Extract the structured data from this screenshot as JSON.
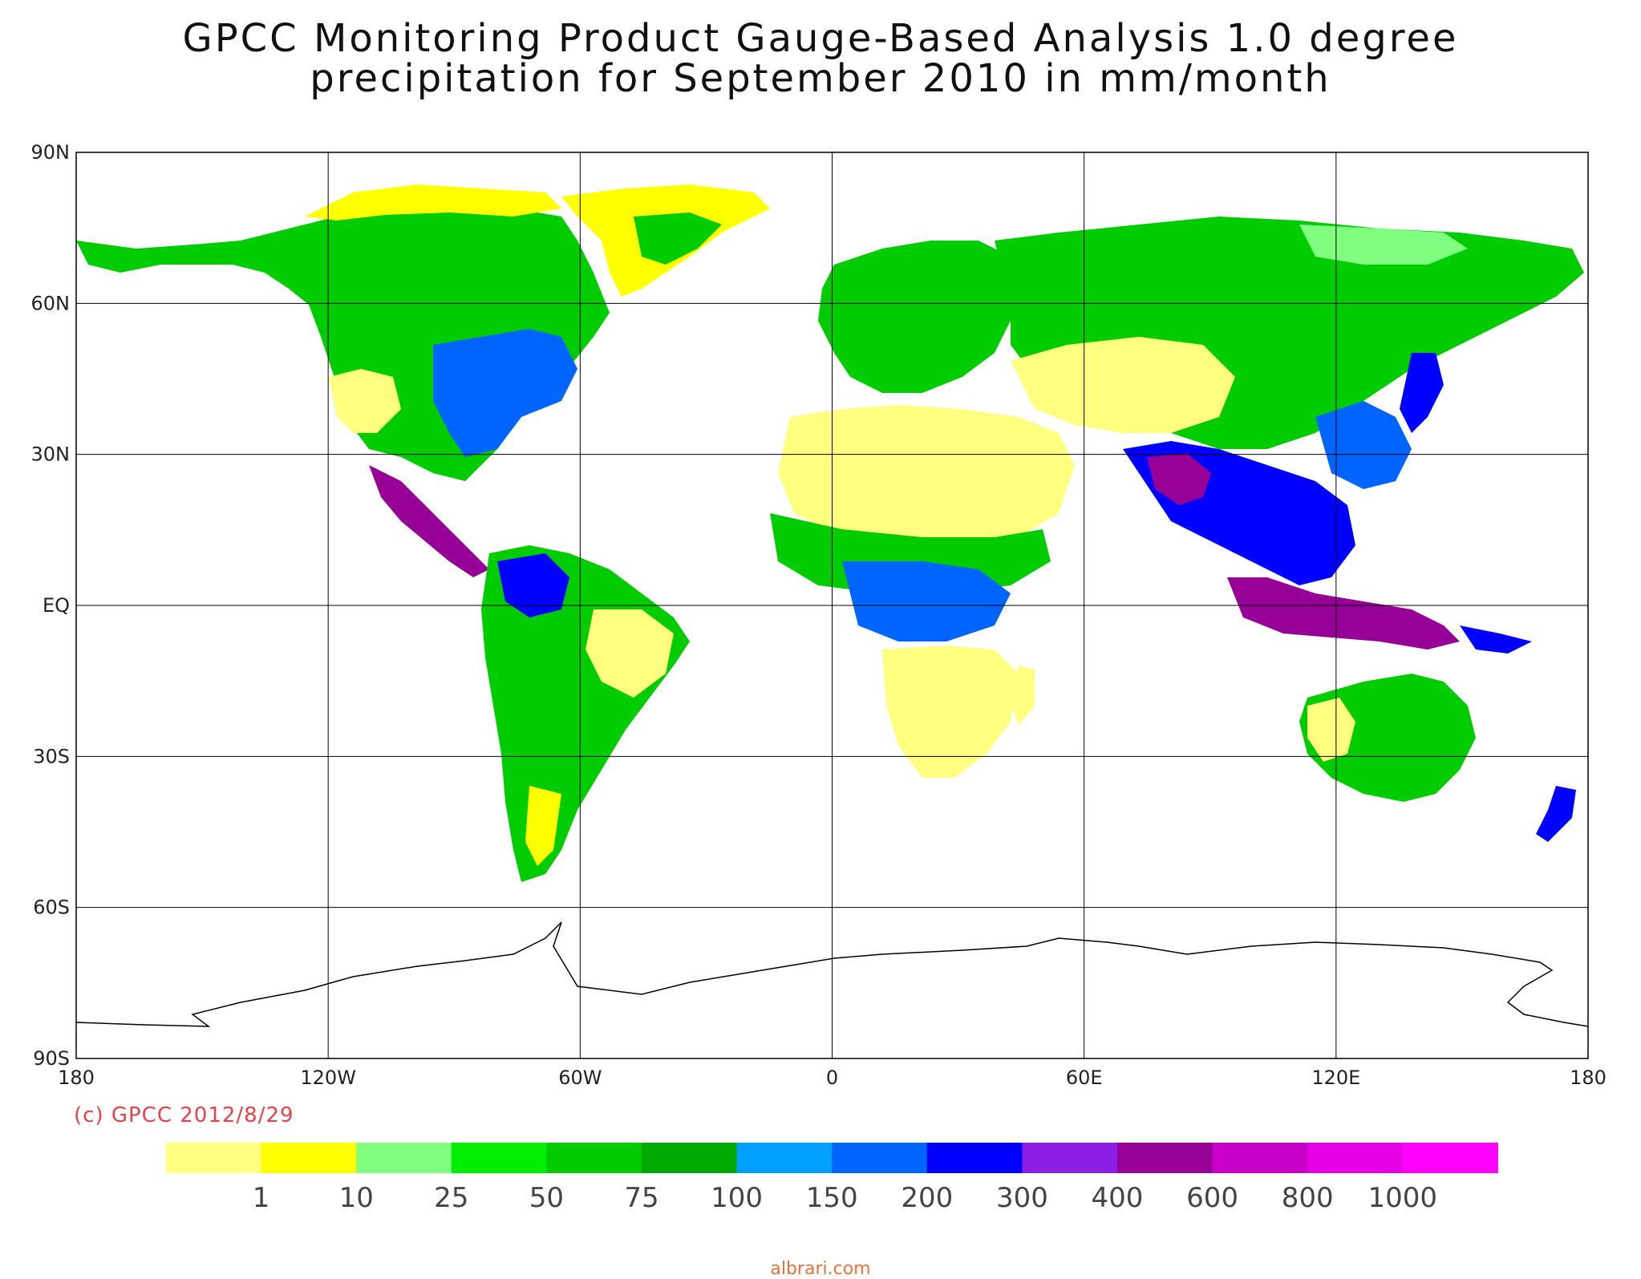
{
  "title_line1": "GPCC Monitoring Product Gauge-Based Analysis 1.0 degree",
  "title_line2": "precipitation for September  2010 in mm/month",
  "lat_labels": [
    "90N",
    "60N",
    "30N",
    "EQ",
    "30S",
    "60S",
    "90S"
  ],
  "lon_labels": [
    "180",
    "120W",
    "60W",
    "0",
    "60E",
    "120E",
    "180"
  ],
  "copyright": "(c) GPCC 2012/8/29",
  "footer": "albrari.com",
  "colorbar": {
    "colors": [
      "#ffff80",
      "#ffff00",
      "#80ff80",
      "#00ee00",
      "#00cc00",
      "#00aa00",
      "#00a0ff",
      "#0064ff",
      "#0000ff",
      "#8c1ee6",
      "#960096",
      "#c800c8",
      "#e600e6",
      "#ff00ff"
    ],
    "labels": [
      "1",
      "10",
      "25",
      "50",
      "75",
      "100",
      "150",
      "200",
      "300",
      "400",
      "600",
      "800",
      "1000"
    ]
  },
  "map_colors": {
    "ocean": "#ffffff",
    "coast": "#000000",
    "grid": "#000000"
  }
}
